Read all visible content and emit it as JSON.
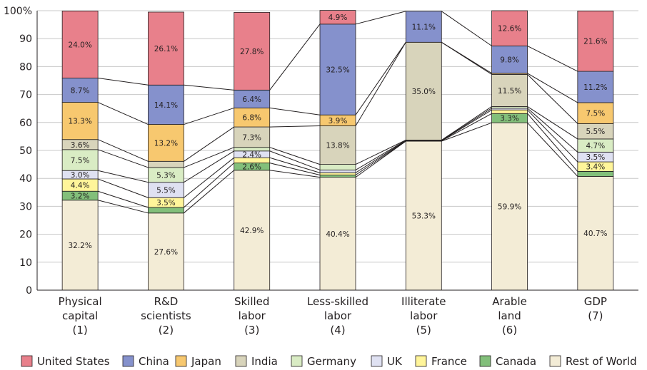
{
  "chart_data": {
    "type": "bar",
    "stacked": true,
    "percent": true,
    "ylim": [
      0,
      100
    ],
    "y_ticks": [
      "0",
      "10",
      "20",
      "30",
      "40",
      "50",
      "60",
      "70",
      "80",
      "90",
      "100%"
    ],
    "grid": true,
    "legend_position": "bottom",
    "categories": [
      [
        "Physical",
        "capital",
        "(1)"
      ],
      [
        "R&D",
        "scientists",
        "(2)"
      ],
      [
        "Skilled",
        "labor",
        "(3)"
      ],
      [
        "Less-skilled",
        "labor",
        "(4)"
      ],
      [
        "Illiterate",
        "labor",
        "(5)"
      ],
      [
        "Arable",
        "land",
        "(6)"
      ],
      [
        "GDP",
        "(7)"
      ]
    ],
    "series": [
      {
        "name": "Rest of World",
        "color": "#f3ecd6",
        "values": [
          32.2,
          27.6,
          42.9,
          40.4,
          53.3,
          59.9,
          40.7
        ],
        "labels": [
          "32.2%",
          "27.6%",
          "42.9%",
          "40.4%",
          "53.3%",
          "59.9%",
          "40.7%"
        ]
      },
      {
        "name": "Canada",
        "color": "#82bf7a",
        "values": [
          3.2,
          2.0,
          2.6,
          0.8,
          0.1,
          3.3,
          1.8
        ],
        "labels": [
          "3.2%",
          "",
          "2.6%",
          "",
          "",
          "3.3%",
          ""
        ]
      },
      {
        "name": "France",
        "color": "#fff59a",
        "values": [
          4.4,
          3.5,
          1.9,
          0.8,
          0.1,
          1.3,
          3.4
        ],
        "labels": [
          "4.4%",
          "3.5%",
          "",
          "",
          "",
          "",
          "3.4%"
        ]
      },
      {
        "name": "UK",
        "color": "#dfe1f2",
        "values": [
          3.0,
          5.5,
          2.4,
          1.0,
          0.1,
          0.6,
          3.5
        ],
        "labels": [
          "3.0%",
          "5.5%",
          "2.4%",
          "",
          "",
          "",
          "3.5%"
        ]
      },
      {
        "name": "Germany",
        "color": "#d9ecc4",
        "values": [
          7.5,
          5.3,
          1.3,
          2.0,
          0.1,
          0.6,
          4.7
        ],
        "labels": [
          "7.5%",
          "5.3%",
          "",
          "",
          "",
          "",
          "4.7%"
        ]
      },
      {
        "name": "India",
        "color": "#d8d4bb",
        "values": [
          3.6,
          2.2,
          7.3,
          13.8,
          35.0,
          11.5,
          5.5
        ],
        "labels": [
          "3.6%",
          "",
          "7.3%",
          "13.8%",
          "35.0%",
          "11.5%",
          "5.5%"
        ]
      },
      {
        "name": "Japan",
        "color": "#f7c86f",
        "values": [
          13.3,
          13.2,
          6.8,
          3.9,
          0.0,
          0.4,
          7.5
        ],
        "labels": [
          "13.3%",
          "13.2%",
          "6.8%",
          "3.9%",
          "",
          "",
          "7.5%"
        ]
      },
      {
        "name": "China",
        "color": "#8591cc",
        "values": [
          8.7,
          14.1,
          6.4,
          32.5,
          11.1,
          9.8,
          11.2
        ],
        "labels": [
          "8.7%",
          "14.1%",
          "6.4%",
          "32.5%",
          "11.1%",
          "9.8%",
          "11.2%"
        ]
      },
      {
        "name": "United States",
        "color": "#e8808b",
        "values": [
          24.0,
          26.1,
          27.8,
          4.9,
          0.0,
          12.6,
          21.6
        ],
        "labels": [
          "24.0%",
          "26.1%",
          "27.8%",
          "4.9%",
          "",
          "12.6%",
          "21.6%"
        ]
      }
    ],
    "legend_order": [
      "United States",
      "China",
      "Japan",
      "India",
      "Germany",
      "UK",
      "France",
      "Canada",
      "Rest of World"
    ]
  }
}
